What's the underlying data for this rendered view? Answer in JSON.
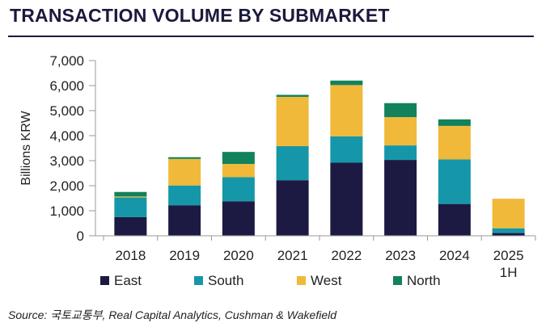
{
  "header": {
    "title": "TRANSACTION VOLUME BY SUBMARKET"
  },
  "footer": {
    "source": "Source: 국토교통부, Real Capital Analytics, Cushman & Wakefield"
  },
  "chart_data": {
    "type": "bar",
    "stacked": true,
    "title": "TRANSACTION VOLUME BY SUBMARKET",
    "ylabel": "Billions KRW",
    "xlabel": "",
    "ylim": [
      0,
      7000
    ],
    "yticks": [
      0,
      1000,
      2000,
      3000,
      4000,
      5000,
      6000,
      7000
    ],
    "ytick_labels": [
      "0",
      "1,000",
      "2,000",
      "3,000",
      "4,000",
      "5,000",
      "6,000",
      "7,000"
    ],
    "categories": [
      "2018",
      "2019",
      "2020",
      "2021",
      "2022",
      "2023",
      "2024",
      "2025 1H"
    ],
    "category_lines": [
      [
        "2018"
      ],
      [
        "2019"
      ],
      [
        "2020"
      ],
      [
        "2021"
      ],
      [
        "2022"
      ],
      [
        "2023"
      ],
      [
        "2024"
      ],
      [
        "2025",
        "1H"
      ]
    ],
    "series": [
      {
        "name": "East",
        "color": "#1c1a42",
        "values": [
          750,
          1220,
          1380,
          2220,
          2920,
          3030,
          1270,
          110
        ]
      },
      {
        "name": "South",
        "color": "#1597a9",
        "values": [
          780,
          790,
          960,
          1360,
          1050,
          580,
          1780,
          190
        ]
      },
      {
        "name": "West",
        "color": "#f0b93a",
        "values": [
          40,
          1060,
          530,
          1970,
          2050,
          1130,
          1340,
          1180
        ]
      },
      {
        "name": "North",
        "color": "#11825c",
        "values": [
          180,
          70,
          480,
          80,
          180,
          560,
          260,
          0
        ]
      }
    ],
    "grid": false,
    "legend_position": "bottom"
  }
}
